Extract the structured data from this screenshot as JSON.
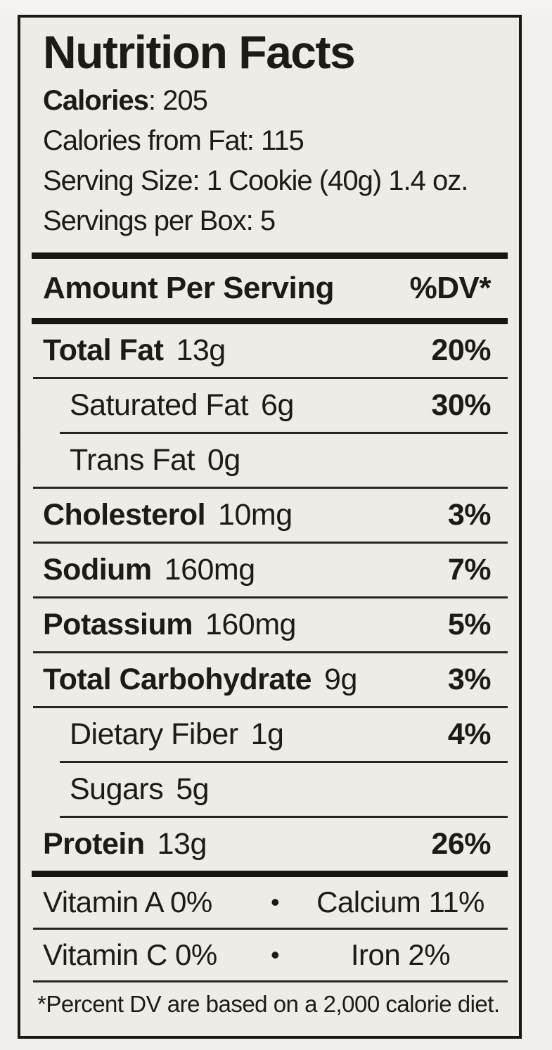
{
  "title": "Nutrition Facts",
  "summary": {
    "calories_label": "Calories",
    "calories_rest": ": 205",
    "lines": [
      "Calories from Fat: 115",
      "Serving Size: 1 Cookie (40g) 1.4 oz.",
      "Servings per Box: 5"
    ]
  },
  "header": {
    "amount": "Amount Per Serving",
    "dv": "%DV*"
  },
  "nutrients": [
    {
      "name": "Total Fat",
      "amount": "13g",
      "dv": "20%"
    },
    {
      "name": "Saturated Fat",
      "amount": "6g",
      "dv": "30%"
    },
    {
      "name": "Trans Fat",
      "amount": "0g",
      "dv": ""
    },
    {
      "name": "Cholesterol",
      "amount": "10mg",
      "dv": "3%"
    },
    {
      "name": "Sodium",
      "amount": "160mg",
      "dv": "7%"
    },
    {
      "name": "Potassium",
      "amount": "160mg",
      "dv": "5%"
    },
    {
      "name": "Total Carbohydrate",
      "amount": "9g",
      "dv": "3%"
    },
    {
      "name": "Dietary Fiber",
      "amount": "1g",
      "dv": "4%"
    },
    {
      "name": "Sugars",
      "amount": "5g",
      "dv": ""
    },
    {
      "name": "Protein",
      "amount": "13g",
      "dv": "26%"
    }
  ],
  "micronutrients": [
    {
      "left": "Vitamin A 0%",
      "bullet": "•",
      "right": "Calcium 11%"
    },
    {
      "left": "Vitamin C 0%",
      "bullet": "•",
      "right": "Iron 2%"
    }
  ],
  "footnote": "*Percent DV are based on a 2,000 calorie diet.",
  "colors": {
    "label_background": "#edece7",
    "page_background": "#f1f0ec",
    "ink": "#1c1b18"
  }
}
